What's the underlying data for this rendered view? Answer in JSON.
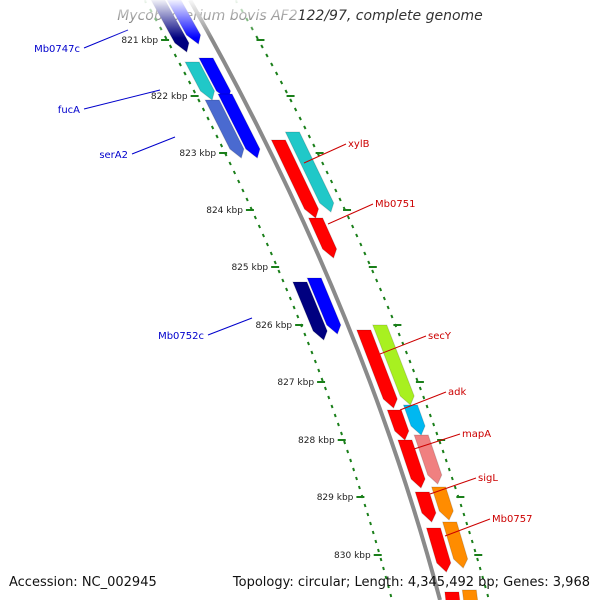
{
  "title": "Mycobacterium bovis AF2122/97, complete genome",
  "footer": {
    "accession": "Accession: NC_002945",
    "topology": "Topology: circular; Length: 4,345,492 bp; Genes: 3,968"
  },
  "colors": {
    "backbone": "#8a8a8a",
    "tick": "#1a7f1a",
    "label_left": "#0000cc",
    "label_right": "#cc0000"
  },
  "ticks": [
    "821 kbp",
    "822 kbp",
    "823 kbp",
    "824 kbp",
    "825 kbp",
    "826 kbp",
    "827 kbp",
    "828 kbp",
    "829 kbp",
    "830 kbp"
  ],
  "genes_left": [
    {
      "label": "Mb0747c"
    },
    {
      "label": "fucA"
    },
    {
      "label": "serA2"
    },
    {
      "label": "Mb0752c"
    }
  ],
  "genes_right": [
    {
      "label": "xylB"
    },
    {
      "label": "Mb0751"
    },
    {
      "label": "secY"
    },
    {
      "label": "adk"
    },
    {
      "label": "mapA"
    },
    {
      "label": "sigL"
    },
    {
      "label": "Mb0757"
    }
  ]
}
